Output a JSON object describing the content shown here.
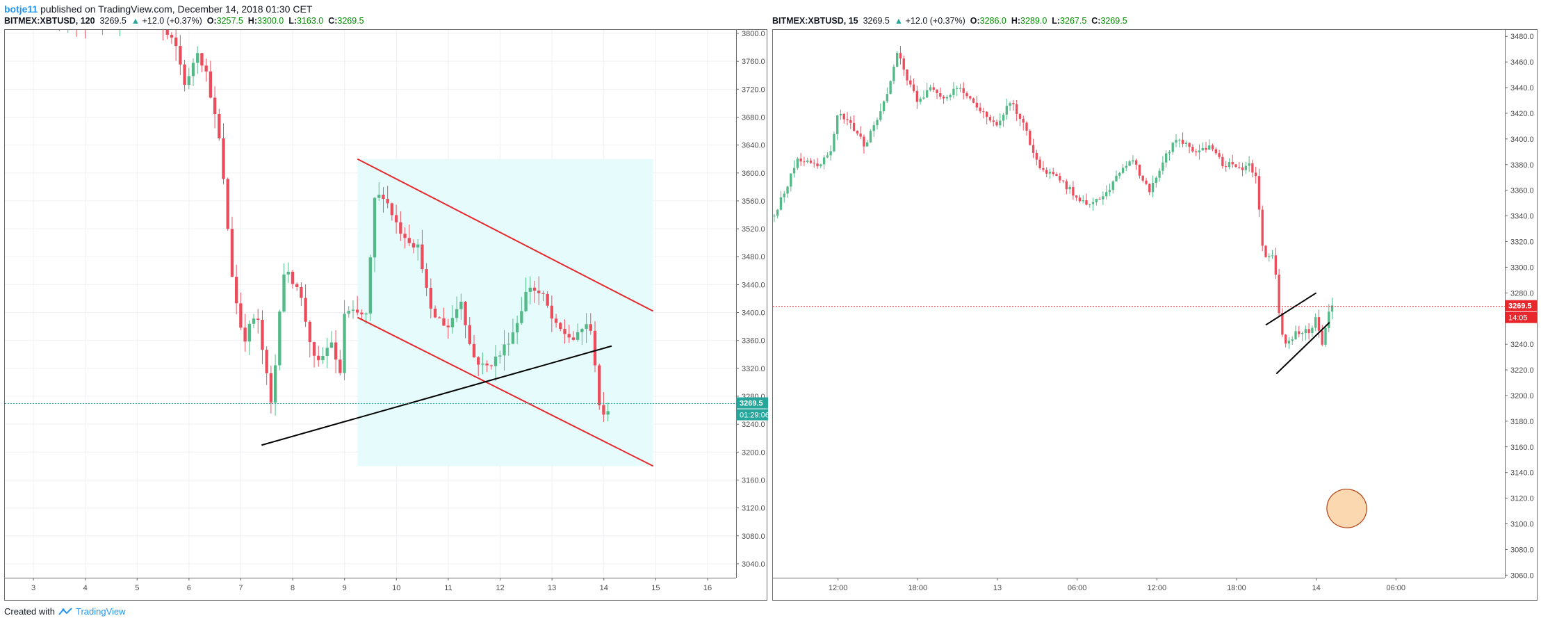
{
  "header": {
    "author": "botje11",
    "published_text": " published on TradingView.com, December 14, 2018 01:30 CET"
  },
  "footer": {
    "created_with": "Created with",
    "brand": "TradingView"
  },
  "left_chart": {
    "symbol": "BITMEX:XBTUSD, 120",
    "last": "3269.5",
    "change": "+12.0 (+0.37%)",
    "O": "3257.5",
    "H": "3300.0",
    "L": "3163.0",
    "C": "3269.5",
    "price_badge": "3269.5",
    "timer_badge": "01:29:06"
  },
  "right_chart": {
    "symbol": "BITMEX:XBTUSD, 15",
    "last": "3269.5",
    "change": "+12.0 (+0.37%)",
    "O": "3286.0",
    "H": "3289.0",
    "L": "3267.5",
    "C": "3269.5",
    "price_badge": "3269.5",
    "timer_badge": "14:05"
  },
  "colors": {
    "up": "#53b987",
    "down": "#eb4d5c",
    "channel_line": "#e8272c",
    "trend_line": "#000000",
    "channel_fill": "#e6fcfc",
    "last_price_left": "#26a69a",
    "last_price_right": "#e8272c",
    "circle_fill": "#fbd8b0",
    "circle_stroke": "#b34010"
  },
  "chart_data": [
    {
      "type": "candlestick",
      "title": "BITMEX:XBTUSD, 120",
      "x_ticks": [
        "3",
        "4",
        "5",
        "6",
        "7",
        "8",
        "9",
        "10",
        "11",
        "12",
        "13",
        "14",
        "15",
        "16"
      ],
      "y_ticks": [
        3800,
        3760,
        3720,
        3680,
        3640,
        3600,
        3560,
        3520,
        3480,
        3440,
        3400,
        3360,
        3320,
        3280,
        3240,
        3200,
        3160,
        3120,
        3080,
        3040
      ],
      "ylim": [
        3020,
        3805
      ],
      "xlim": [
        2.45,
        16.55
      ],
      "last_price": 3269.5,
      "grid": true,
      "anchors": [
        [
          3.5,
          3830
        ],
        [
          4.0,
          3815
        ],
        [
          4.5,
          3820
        ],
        [
          5.0,
          3840
        ],
        [
          5.5,
          3805
        ],
        [
          5.75,
          3780
        ],
        [
          5.95,
          3720
        ],
        [
          6.15,
          3780
        ],
        [
          6.35,
          3740
        ],
        [
          6.6,
          3640
        ],
        [
          6.85,
          3440
        ],
        [
          7.05,
          3360
        ],
        [
          7.3,
          3400
        ],
        [
          7.6,
          3260
        ],
        [
          7.8,
          3460
        ],
        [
          8.1,
          3440
        ],
        [
          8.45,
          3320
        ],
        [
          8.75,
          3360
        ],
        [
          8.9,
          3300
        ],
        [
          9.0,
          3400
        ],
        [
          9.45,
          3395
        ],
        [
          9.55,
          3560
        ],
        [
          9.75,
          3570
        ],
        [
          10.05,
          3520
        ],
        [
          10.45,
          3490
        ],
        [
          10.65,
          3400
        ],
        [
          11.0,
          3380
        ],
        [
          11.25,
          3420
        ],
        [
          11.45,
          3340
        ],
        [
          11.7,
          3320
        ],
        [
          12.0,
          3340
        ],
        [
          12.3,
          3380
        ],
        [
          12.55,
          3440
        ],
        [
          12.85,
          3420
        ],
        [
          13.05,
          3380
        ],
        [
          13.45,
          3360
        ],
        [
          13.7,
          3390
        ],
        [
          13.85,
          3320
        ],
        [
          13.95,
          3240
        ],
        [
          14.05,
          3255
        ],
        [
          14.1,
          3269.5
        ]
      ],
      "candle_step": 0.0833,
      "drawings": [
        {
          "kind": "channel_upper",
          "from": [
            9.25,
            3620
          ],
          "to": [
            14.95,
            3402
          ]
        },
        {
          "kind": "channel_lower",
          "from": [
            9.25,
            3393
          ],
          "to": [
            14.95,
            3180
          ]
        },
        {
          "kind": "trend_line",
          "from": [
            7.4,
            3210
          ],
          "to": [
            14.15,
            3352
          ]
        },
        {
          "kind": "shaded_region",
          "x": [
            9.25,
            14.95
          ],
          "y": [
            3180,
            3620
          ]
        }
      ]
    },
    {
      "type": "candlestick",
      "title": "BITMEX:XBTUSD, 15",
      "x_ticks": [
        "12:00",
        "18:00",
        "13",
        "06:00",
        "12:00",
        "18:00",
        "14",
        "06:00"
      ],
      "x_tick_hours": [
        12,
        18,
        24,
        30,
        36,
        42,
        48,
        54
      ],
      "y_ticks": [
        3480,
        3460,
        3440,
        3420,
        3400,
        3380,
        3360,
        3340,
        3320,
        3300,
        3280,
        3260,
        3240,
        3220,
        3200,
        3180,
        3160,
        3140,
        3120,
        3100,
        3080,
        3060
      ],
      "ylim": [
        3058,
        3485
      ],
      "xlim": [
        7.1,
        62.2
      ],
      "last_price": 3269.5,
      "grid": false,
      "anchors": [
        [
          7.2,
          3340
        ],
        [
          8.0,
          3360
        ],
        [
          9.0,
          3385
        ],
        [
          10.5,
          3380
        ],
        [
          11.5,
          3390
        ],
        [
          12.0,
          3420
        ],
        [
          13.0,
          3410
        ],
        [
          14.0,
          3395
        ],
        [
          15.0,
          3415
        ],
        [
          15.8,
          3440
        ],
        [
          16.5,
          3470
        ],
        [
          17.0,
          3450
        ],
        [
          18.0,
          3430
        ],
        [
          19.0,
          3440
        ],
        [
          20.0,
          3430
        ],
        [
          21.0,
          3440
        ],
        [
          22.0,
          3430
        ],
        [
          23.0,
          3420
        ],
        [
          24.0,
          3410
        ],
        [
          25.0,
          3430
        ],
        [
          26.0,
          3410
        ],
        [
          27.0,
          3380
        ],
        [
          28.5,
          3370
        ],
        [
          29.5,
          3360
        ],
        [
          30.5,
          3350
        ],
        [
          32.0,
          3355
        ],
        [
          33.0,
          3370
        ],
        [
          34.0,
          3385
        ],
        [
          35.5,
          3360
        ],
        [
          36.5,
          3385
        ],
        [
          37.5,
          3400
        ],
        [
          39.0,
          3390
        ],
        [
          40.0,
          3395
        ],
        [
          41.0,
          3380
        ],
        [
          42.0,
          3380
        ],
        [
          42.5,
          3375
        ],
        [
          43.0,
          3380
        ],
        [
          43.5,
          3370
        ],
        [
          44.0,
          3310
        ],
        [
          44.8,
          3310
        ],
        [
          45.3,
          3250
        ],
        [
          45.8,
          3240
        ],
        [
          46.5,
          3250
        ],
        [
          47.5,
          3250
        ],
        [
          48.0,
          3260
        ],
        [
          48.5,
          3240
        ],
        [
          49.0,
          3270
        ],
        [
          49.3,
          3269.5
        ]
      ],
      "candle_step": 0.25,
      "drawings": [
        {
          "kind": "trend_line",
          "from": [
            44.2,
            3255
          ],
          "to": [
            48.0,
            3280
          ]
        },
        {
          "kind": "trend_line",
          "from": [
            45.0,
            3217
          ],
          "to": [
            49.0,
            3257
          ]
        },
        {
          "kind": "ellipse",
          "center": [
            50.3,
            3112
          ],
          "radius_x": 1.5,
          "radius_y": 15
        }
      ]
    }
  ]
}
